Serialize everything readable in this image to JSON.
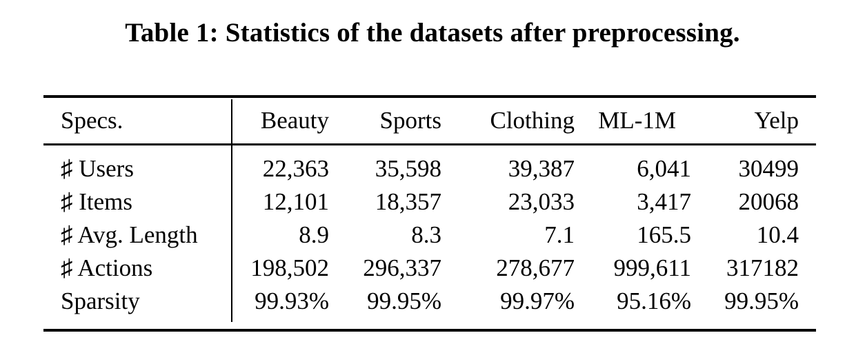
{
  "title": "Table 1: Statistics of the datasets after preprocessing.",
  "table": {
    "header": [
      "Specs.",
      "Beauty",
      "Sports",
      "Clothing",
      "ML-1M",
      "Yelp"
    ],
    "rows": [
      {
        "label": "♯ Users",
        "values": [
          "22,363",
          "35,598",
          "39,387",
          "6,041",
          "30499"
        ]
      },
      {
        "label": "♯ Items",
        "values": [
          "12,101",
          "18,357",
          "23,033",
          "3,417",
          "20068"
        ]
      },
      {
        "label": "♯ Avg. Length",
        "values": [
          "8.9",
          "8.3",
          "7.1",
          "165.5",
          "10.4"
        ]
      },
      {
        "label": "♯ Actions",
        "values": [
          "198,502",
          "296,337",
          "278,677",
          "999,611",
          "317182"
        ]
      },
      {
        "label": "Sparsity",
        "values": [
          "99.93%",
          "99.95%",
          "99.97%",
          "95.16%",
          "99.95%"
        ]
      }
    ]
  },
  "chart_data": {
    "type": "table",
    "title": "Table 1: Statistics of the datasets after preprocessing.",
    "columns": [
      "Specs.",
      "Beauty",
      "Sports",
      "Clothing",
      "ML-1M",
      "Yelp"
    ],
    "rows": [
      [
        "♯ Users",
        "22,363",
        "35,598",
        "39,387",
        "6,041",
        "30499"
      ],
      [
        "♯ Items",
        "12,101",
        "18,357",
        "23,033",
        "3,417",
        "20068"
      ],
      [
        "♯ Avg. Length",
        "8.9",
        "8.3",
        "7.1",
        "165.5",
        "10.4"
      ],
      [
        "♯ Actions",
        "198,502",
        "296,337",
        "278,677",
        "999,611",
        "317182"
      ],
      [
        "Sparsity",
        "99.93%",
        "99.95%",
        "99.97%",
        "95.16%",
        "99.95%"
      ]
    ]
  },
  "colors": {
    "text": "#000000",
    "background": "#ffffff",
    "rule": "#000000"
  }
}
